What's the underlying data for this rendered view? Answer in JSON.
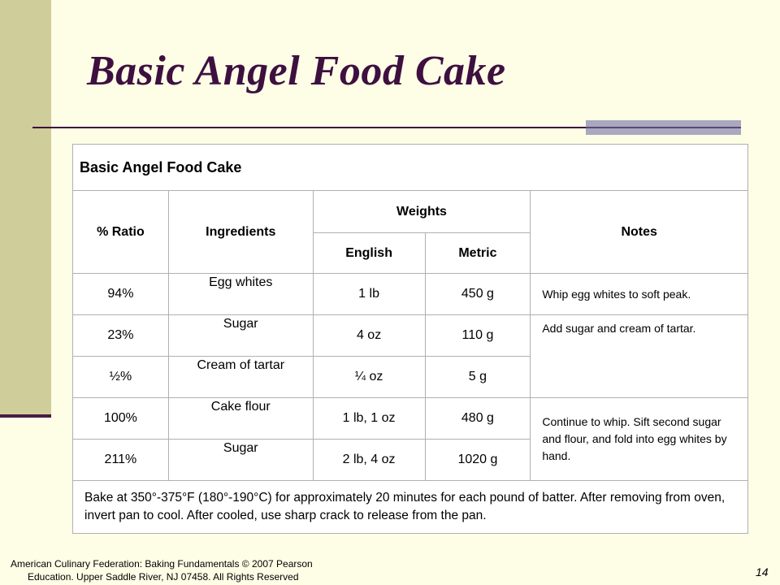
{
  "slide": {
    "title": "Basic Angel Food Cake",
    "page_number": "14"
  },
  "table": {
    "caption": "Basic Angel Food Cake",
    "headers": {
      "ratio": "% Ratio",
      "ingredients": "Ingredients",
      "weights": "Weights",
      "english": "English",
      "metric": "Metric",
      "notes": "Notes"
    },
    "rows": [
      {
        "ratio": "94%",
        "ingredient": "Egg whites",
        "english": "1 lb",
        "metric": "450 g"
      },
      {
        "ratio": "23%",
        "ingredient": "Sugar",
        "english": "4 oz",
        "metric": "110 g"
      },
      {
        "ratio": "½%",
        "ingredient": "Cream of tartar",
        "english": "¼ oz",
        "metric": "5 g"
      },
      {
        "ratio": "100%",
        "ingredient": "Cake flour",
        "english": "1 lb, 1 oz",
        "metric": "480 g"
      },
      {
        "ratio": "211%",
        "ingredient": "Sugar",
        "english": "2 lb, 4 oz",
        "metric": "1020 g"
      }
    ],
    "notes": [
      "Whip egg whites to soft peak.",
      "Add sugar and cream of tartar.",
      "Continue to whip.  Sift second sugar and flour, and fold into egg whites by hand."
    ],
    "bake_instructions": "Bake at 350°-375°F (180°-190°C) for approximately 20 minutes for each pound of batter.  After removing from oven, invert pan to cool.  After cooled, use sharp crack to release from the pan."
  },
  "footer": {
    "line1": "American Culinary Federation: Baking Fundamentals © 2007 Pearson",
    "line2": "Education. Upper Saddle River, NJ 07458.  All Rights Reserved"
  }
}
